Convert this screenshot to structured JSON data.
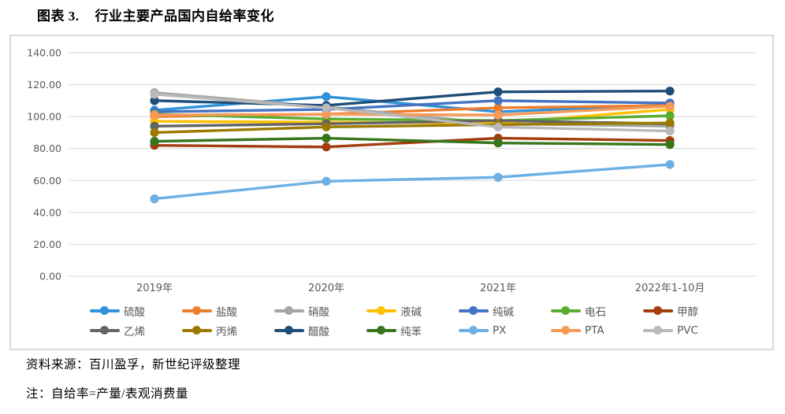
{
  "page_title": {
    "label": "图表 3.",
    "text": "行业主要产品国内自给率变化"
  },
  "footer": {
    "source": "资料来源：百川盈孚，新世纪评级整理",
    "note": "注：自给率=产量/表观消费量"
  },
  "chart_data": {
    "type": "line",
    "title": "行业主要产品国内自给率变化",
    "categories": [
      "2019年",
      "2020年",
      "2021年",
      "2022年1-10月"
    ],
    "xlabel": "",
    "ylabel": "",
    "ylim": [
      0,
      140
    ],
    "ytick_step": 20,
    "ytick_labels": [
      "0.00",
      "20.00",
      "40.00",
      "60.00",
      "80.00",
      "100.00",
      "120.00",
      "140.00"
    ],
    "grid": true,
    "grid_color": "#e2e2e2",
    "axis_text_color": "#595959",
    "legend_position": "bottom",
    "legend_columns": 7,
    "series": [
      {
        "name": "硫酸",
        "color": "#3092d8",
        "values": [
          104.0,
          112.5,
          103.0,
          107.5
        ]
      },
      {
        "name": "盐酸",
        "color": "#ed7d31",
        "values": [
          100.0,
          101.5,
          105.5,
          107.0
        ]
      },
      {
        "name": "硝酸",
        "color": "#a5a5a5",
        "values": [
          115.0,
          106.0,
          95.5,
          94.0
        ]
      },
      {
        "name": "液碱",
        "color": "#ffc000",
        "values": [
          97.0,
          96.5,
          96.0,
          104.5
        ]
      },
      {
        "name": "纯碱",
        "color": "#4472c4",
        "values": [
          103.0,
          104.5,
          110.0,
          108.5
        ]
      },
      {
        "name": "电石",
        "color": "#5bad32",
        "values": [
          101.5,
          98.5,
          97.5,
          100.5
        ]
      },
      {
        "name": "甲醇",
        "color": "#a23e0c",
        "values": [
          82.0,
          81.0,
          86.5,
          85.0
        ]
      },
      {
        "name": "乙烯",
        "color": "#646464",
        "values": [
          94.0,
          95.5,
          97.5,
          95.5
        ]
      },
      {
        "name": "丙烯",
        "color": "#9c7a00",
        "values": [
          90.0,
          93.5,
          95.0,
          96.0
        ]
      },
      {
        "name": "醋酸",
        "color": "#1f4e79",
        "values": [
          110.0,
          107.0,
          115.5,
          116.0
        ]
      },
      {
        "name": "纯苯",
        "color": "#38761d",
        "values": [
          84.5,
          86.5,
          83.5,
          82.5
        ]
      },
      {
        "name": "PX",
        "color": "#6cb0e4",
        "values": [
          48.5,
          59.5,
          62.0,
          70.0
        ]
      },
      {
        "name": "PTA",
        "color": "#f79a56",
        "values": [
          101.0,
          101.5,
          101.0,
          106.5
        ]
      },
      {
        "name": "PVC",
        "color": "#b9b9b9",
        "values": [
          114.0,
          105.5,
          93.5,
          91.0
        ]
      }
    ]
  }
}
